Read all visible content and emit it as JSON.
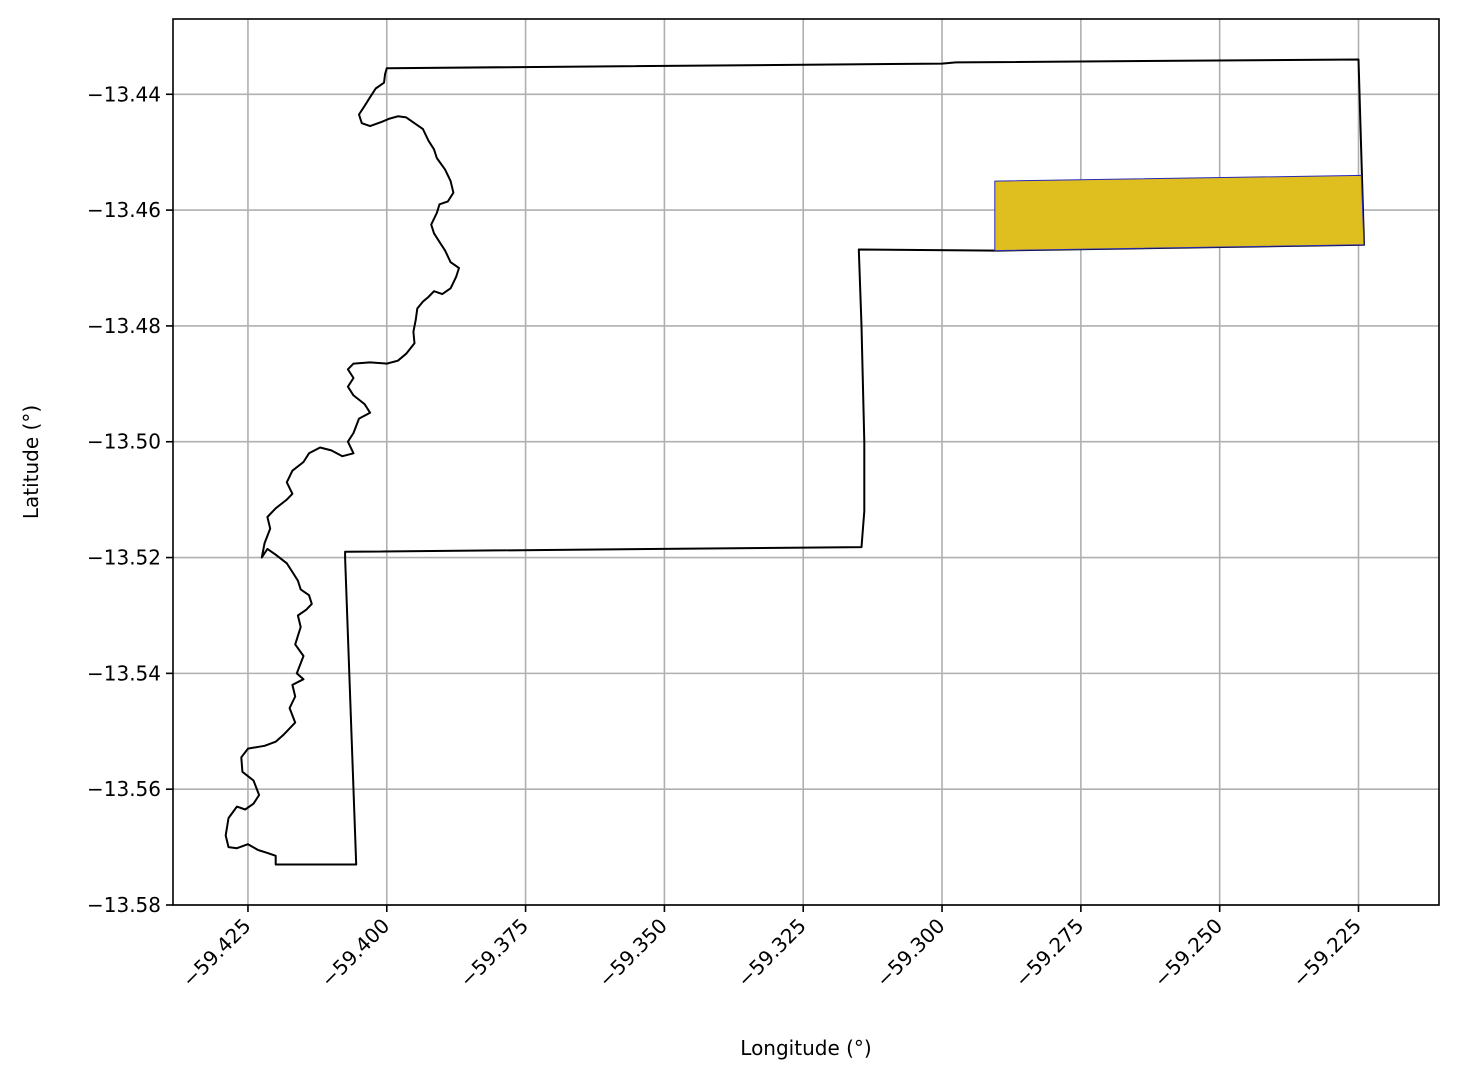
{
  "chart_data": {
    "type": "map",
    "xlabel": "Longitude (°)",
    "ylabel": "Latitude (°)",
    "xlim": [
      -59.4385,
      -59.2105
    ],
    "ylim": [
      -13.58,
      -13.427
    ],
    "x_ticks": [
      -59.425,
      -59.4,
      -59.375,
      -59.35,
      -59.325,
      -59.3,
      -59.275,
      -59.25,
      -59.225
    ],
    "x_tick_labels": [
      "−59.425",
      "−59.400",
      "−59.375",
      "−59.350",
      "−59.325",
      "−59.300",
      "−59.275",
      "−59.250",
      "−59.225"
    ],
    "y_ticks": [
      -13.44,
      -13.46,
      -13.48,
      -13.5,
      -13.52,
      -13.54,
      -13.56,
      -13.58
    ],
    "y_tick_labels": [
      "−13.44",
      "−13.46",
      "−13.48",
      "−13.50",
      "−13.52",
      "−13.54",
      "−13.56",
      "−13.58"
    ],
    "grid": true,
    "layers": [
      {
        "kind": "boundary",
        "edge_color": "#000000",
        "fill": "none",
        "coordinates": [
          [
            -59.4,
            -13.4355
          ],
          [
            -59.3,
            -13.4347
          ],
          [
            -59.2975,
            -13.4345
          ],
          [
            -59.225,
            -13.434
          ],
          [
            -59.224,
            -13.466
          ],
          [
            -59.29,
            -13.467
          ],
          [
            -59.315,
            -13.4668
          ],
          [
            -59.3145,
            -13.48
          ],
          [
            -59.314,
            -13.5
          ],
          [
            -59.314,
            -13.512
          ],
          [
            -59.3145,
            -13.5182
          ],
          [
            -59.4075,
            -13.519
          ],
          [
            -59.4075,
            -13.52
          ],
          [
            -59.4055,
            -13.573
          ],
          [
            -59.42,
            -13.573
          ],
          [
            -59.42,
            -13.5715
          ],
          [
            -59.4215,
            -13.571
          ],
          [
            -59.4232,
            -13.5705
          ],
          [
            -59.425,
            -13.5695
          ],
          [
            -59.427,
            -13.5702
          ],
          [
            -59.4285,
            -13.57
          ],
          [
            -59.429,
            -13.568
          ],
          [
            -59.4285,
            -13.565
          ],
          [
            -59.427,
            -13.563
          ],
          [
            -59.4255,
            -13.5635
          ],
          [
            -59.424,
            -13.5625
          ],
          [
            -59.423,
            -13.561
          ],
          [
            -59.424,
            -13.5585
          ],
          [
            -59.426,
            -13.557
          ],
          [
            -59.4262,
            -13.5545
          ],
          [
            -59.425,
            -13.553
          ],
          [
            -59.422,
            -13.5525
          ],
          [
            -59.42,
            -13.5518
          ],
          [
            -59.4185,
            -13.5505
          ],
          [
            -59.4165,
            -13.5485
          ],
          [
            -59.4175,
            -13.546
          ],
          [
            -59.4165,
            -13.544
          ],
          [
            -59.417,
            -13.542
          ],
          [
            -59.415,
            -13.541
          ],
          [
            -59.4162,
            -13.54
          ],
          [
            -59.415,
            -13.537
          ],
          [
            -59.4165,
            -13.535
          ],
          [
            -59.4155,
            -13.532
          ],
          [
            -59.416,
            -13.53
          ],
          [
            -59.4145,
            -13.529
          ],
          [
            -59.4135,
            -13.528
          ],
          [
            -59.414,
            -13.5265
          ],
          [
            -59.4155,
            -13.5255
          ],
          [
            -59.416,
            -13.524
          ],
          [
            -59.417,
            -13.5225
          ],
          [
            -59.418,
            -13.521
          ],
          [
            -59.42,
            -13.5195
          ],
          [
            -59.4215,
            -13.5185
          ],
          [
            -59.4225,
            -13.52
          ],
          [
            -59.422,
            -13.5175
          ],
          [
            -59.421,
            -13.515
          ],
          [
            -59.4215,
            -13.513
          ],
          [
            -59.42,
            -13.5115
          ],
          [
            -59.418,
            -13.51
          ],
          [
            -59.417,
            -13.509
          ],
          [
            -59.418,
            -13.507
          ],
          [
            -59.417,
            -13.505
          ],
          [
            -59.415,
            -13.5035
          ],
          [
            -59.414,
            -13.502
          ],
          [
            -59.412,
            -13.501
          ],
          [
            -59.41,
            -13.5015
          ],
          [
            -59.408,
            -13.5025
          ],
          [
            -59.406,
            -13.502
          ],
          [
            -59.407,
            -13.5
          ],
          [
            -59.406,
            -13.4985
          ],
          [
            -59.405,
            -13.496
          ],
          [
            -59.403,
            -13.495
          ],
          [
            -59.404,
            -13.4935
          ],
          [
            -59.406,
            -13.492
          ],
          [
            -59.407,
            -13.4905
          ],
          [
            -59.406,
            -13.489
          ],
          [
            -59.407,
            -13.4875
          ],
          [
            -59.406,
            -13.4865
          ],
          [
            -59.403,
            -13.4863
          ],
          [
            -59.4,
            -13.4865
          ],
          [
            -59.398,
            -13.486
          ],
          [
            -59.3965,
            -13.4848
          ],
          [
            -59.395,
            -13.483
          ],
          [
            -59.3952,
            -13.481
          ],
          [
            -59.3948,
            -13.479
          ],
          [
            -59.3945,
            -13.477
          ],
          [
            -59.3935,
            -13.4758
          ],
          [
            -59.3925,
            -13.475
          ],
          [
            -59.3915,
            -13.474
          ],
          [
            -59.39,
            -13.4745
          ],
          [
            -59.3885,
            -13.4735
          ],
          [
            -59.3875,
            -13.4715
          ],
          [
            -59.387,
            -13.47
          ],
          [
            -59.3885,
            -13.469
          ],
          [
            -59.3895,
            -13.467
          ],
          [
            -59.3905,
            -13.4655
          ],
          [
            -59.3915,
            -13.464
          ],
          [
            -59.392,
            -13.4625
          ],
          [
            -59.391,
            -13.4605
          ],
          [
            -59.3905,
            -13.459
          ],
          [
            -59.389,
            -13.4585
          ],
          [
            -59.388,
            -13.457
          ],
          [
            -59.3885,
            -13.455
          ],
          [
            -59.3895,
            -13.453
          ],
          [
            -59.391,
            -13.451
          ],
          [
            -59.3915,
            -13.4495
          ],
          [
            -59.3925,
            -13.448
          ],
          [
            -59.3935,
            -13.446
          ],
          [
            -59.395,
            -13.445
          ],
          [
            -59.3965,
            -13.444
          ],
          [
            -59.398,
            -13.4438
          ],
          [
            -59.3995,
            -13.4442
          ],
          [
            -59.401,
            -13.4448
          ],
          [
            -59.403,
            -13.4455
          ],
          [
            -59.4045,
            -13.445
          ],
          [
            -59.405,
            -13.4435
          ],
          [
            -59.404,
            -13.442
          ],
          [
            -59.403,
            -13.4405
          ],
          [
            -59.402,
            -13.439
          ],
          [
            -59.4005,
            -13.438
          ],
          [
            -59.4003,
            -13.4365
          ],
          [
            -59.4,
            -13.4355
          ]
        ]
      },
      {
        "kind": "highlighted-area",
        "fill_color": "#dfbe20",
        "edge_color": "#2a2ab8",
        "coordinates": [
          [
            -59.2905,
            -13.455
          ],
          [
            -59.2245,
            -13.454
          ],
          [
            -59.224,
            -13.466
          ],
          [
            -59.2905,
            -13.467
          ],
          [
            -59.2905,
            -13.455
          ]
        ]
      }
    ]
  }
}
